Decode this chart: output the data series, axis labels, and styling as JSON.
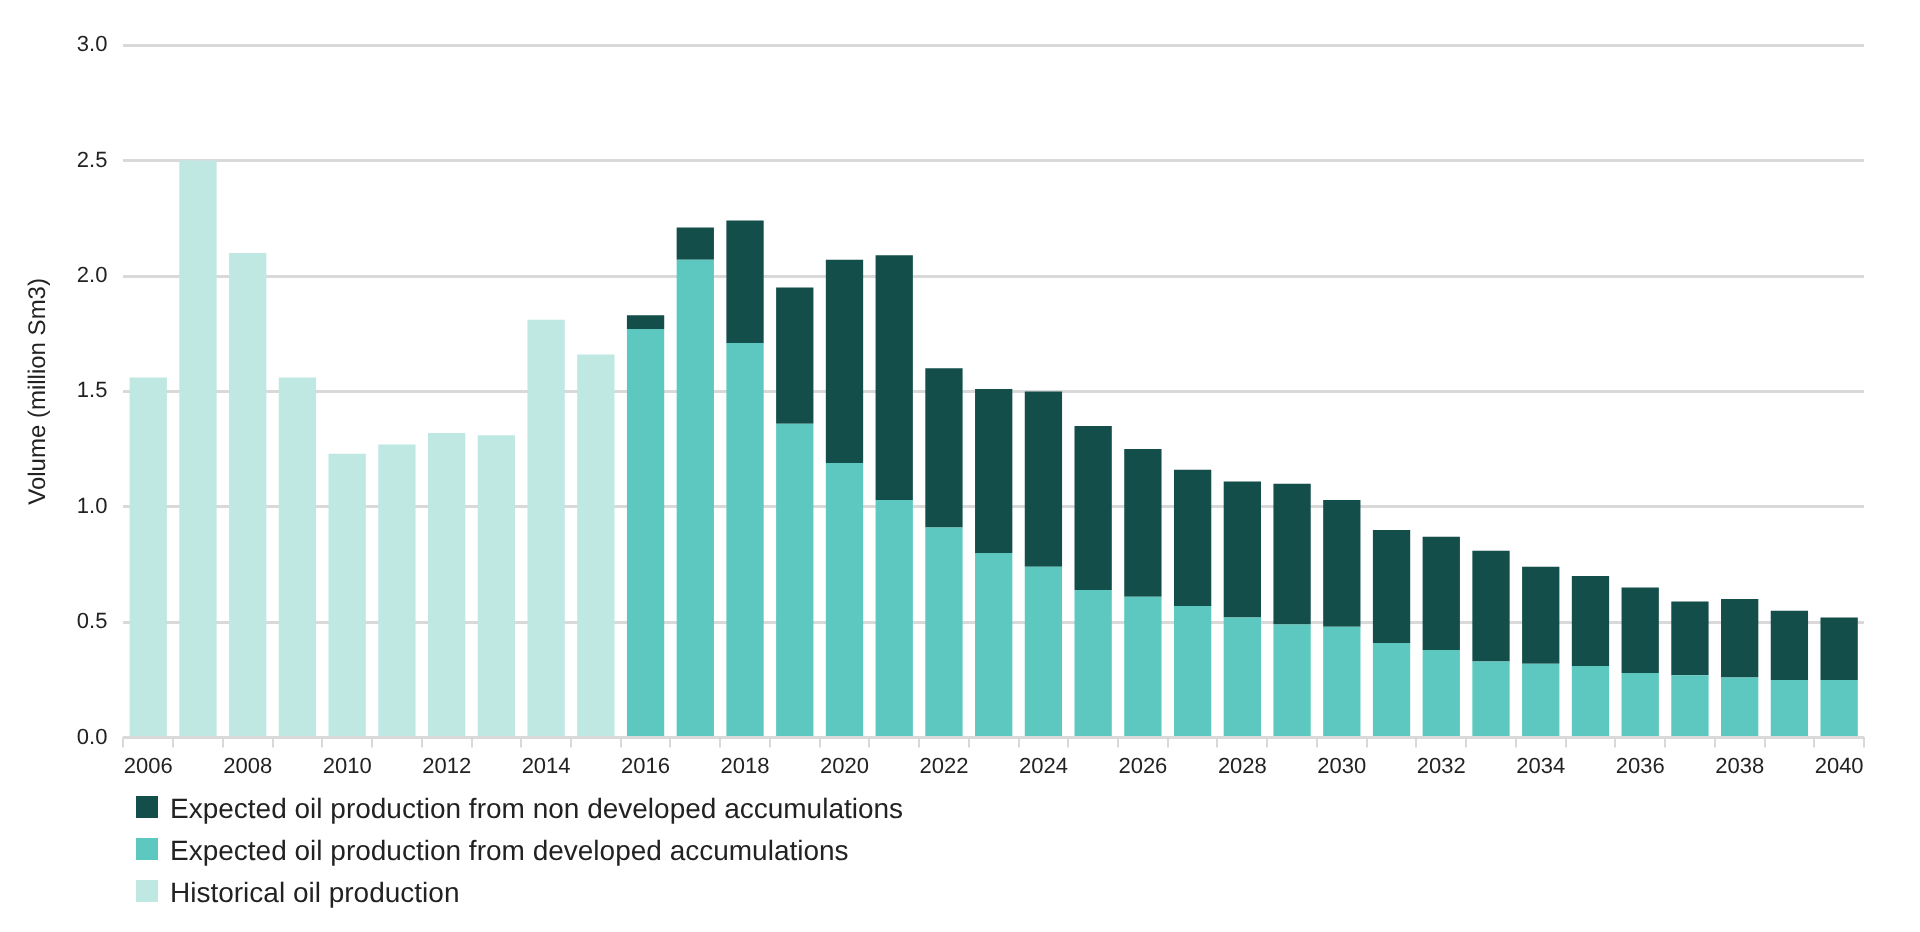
{
  "chart_data": {
    "type": "bar",
    "stacked": true,
    "ylabel": "Volume (million Sm3)",
    "categories": [
      "2006",
      null,
      "2008",
      null,
      "2010",
      null,
      "2012",
      null,
      "2014",
      null,
      "2016",
      null,
      "2018",
      null,
      "2020",
      null,
      "2022",
      null,
      "2024",
      null,
      "2026",
      null,
      "2028",
      null,
      "2030",
      null,
      "2032",
      null,
      "2034",
      null,
      "2036",
      null,
      "2038",
      null,
      "2040"
    ],
    "series": [
      {
        "name": "Historical oil production",
        "color": "#bfe8e2",
        "values": [
          1.56,
          2.5,
          2.1,
          1.56,
          1.23,
          1.27,
          1.32,
          1.31,
          1.81,
          1.66,
          null,
          null,
          null,
          null,
          null,
          null,
          null,
          null,
          null,
          null,
          null,
          null,
          null,
          null,
          null,
          null,
          null,
          null,
          null,
          null,
          null,
          null,
          null,
          null,
          null
        ]
      },
      {
        "name": "Expected oil production from developed accumulations",
        "color": "#5cc8c0",
        "values": [
          null,
          null,
          null,
          null,
          null,
          null,
          null,
          null,
          null,
          null,
          1.77,
          2.07,
          1.71,
          1.36,
          1.19,
          1.03,
          0.91,
          0.8,
          0.74,
          0.64,
          0.61,
          0.57,
          0.52,
          0.49,
          0.48,
          0.41,
          0.38,
          0.33,
          0.32,
          0.31,
          0.28,
          0.27,
          0.26,
          0.25,
          0.25
        ]
      },
      {
        "name": "Expected oil production from non developed accumulations",
        "color": "#134e4a",
        "values": [
          null,
          null,
          null,
          null,
          null,
          null,
          null,
          null,
          null,
          null,
          0.06,
          0.14,
          0.53,
          0.59,
          0.88,
          1.06,
          0.69,
          0.71,
          0.76,
          0.71,
          0.64,
          0.59,
          0.59,
          0.61,
          0.55,
          0.49,
          0.49,
          0.48,
          0.42,
          0.39,
          0.37,
          0.32,
          0.34,
          0.3,
          0.27
        ]
      }
    ],
    "ylim": [
      0,
      3
    ],
    "yticks": [
      {
        "value": 0,
        "label": "0.0"
      },
      {
        "value": 0.5,
        "label": "0.5"
      },
      {
        "value": 1,
        "label": "1.0"
      },
      {
        "value": 1.5,
        "label": "1.5"
      },
      {
        "value": 2,
        "label": "2.0"
      },
      {
        "value": 2.5,
        "label": "2.5"
      },
      {
        "value": 3,
        "label": "3.0"
      }
    ],
    "grid": "y",
    "legend": "bottom"
  }
}
